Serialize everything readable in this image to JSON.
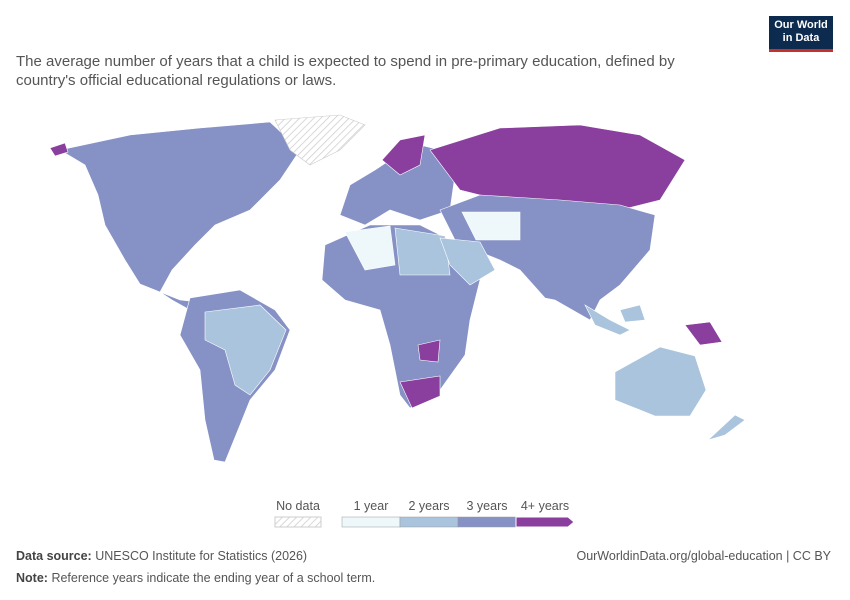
{
  "header": {
    "subtitle": "The average number of years that a child is expected to spend in pre-primary education, defined by country's official educational regulations or laws.",
    "logo": [
      "Our World",
      "in Data"
    ]
  },
  "legend": {
    "no_data": "No data",
    "items": [
      {
        "label": "1 year",
        "color": "#eef7fa"
      },
      {
        "label": "2 years",
        "color": "#a9c4dc"
      },
      {
        "label": "3 years",
        "color": "#8691c5"
      },
      {
        "label": "4+ years",
        "color": "#8a3f9e"
      }
    ]
  },
  "footer": {
    "source_label": "Data source:",
    "source": "UNESCO Institute for Statistics (2026)",
    "url": "OurWorldinData.org/global-education | CC BY",
    "note_label": "Note:",
    "note": "Reference years indicate the ending year of a school term."
  }
}
